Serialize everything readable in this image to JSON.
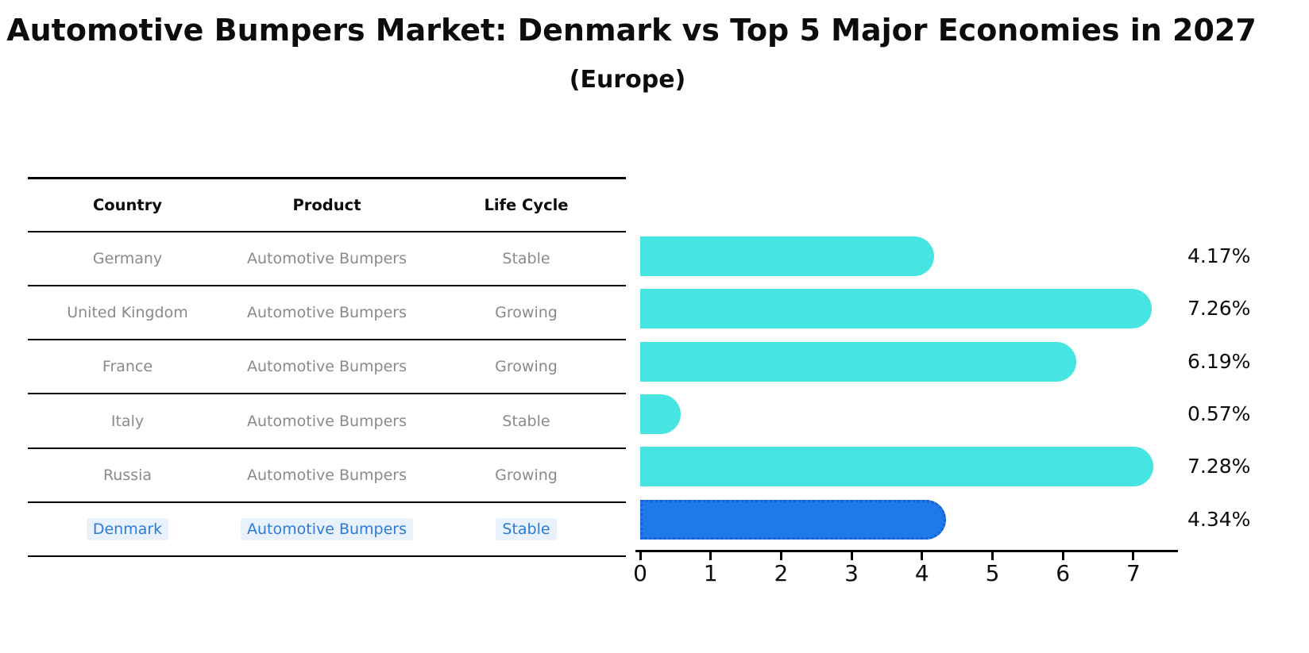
{
  "title": "Automotive Bumpers Market: Denmark vs Top 5 Major Economies in 2027",
  "subtitle": "(Europe)",
  "table": {
    "headers": [
      "Country",
      "Product",
      "Life Cycle"
    ],
    "rows": [
      {
        "country": "Germany",
        "product": "Automotive Bumpers",
        "life_cycle": "Stable",
        "highlighted": false
      },
      {
        "country": "United Kingdom",
        "product": "Automotive Bumpers",
        "life_cycle": "Growing",
        "highlighted": false
      },
      {
        "country": "France",
        "product": "Automotive Bumpers",
        "life_cycle": "Growing",
        "highlighted": false
      },
      {
        "country": "Italy",
        "product": "Automotive Bumpers",
        "life_cycle": "Stable",
        "highlighted": false
      },
      {
        "country": "Russia",
        "product": "Automotive Bumpers",
        "life_cycle": "Growing",
        "highlighted": false
      },
      {
        "country": "Denmark",
        "product": "Automotive Bumpers",
        "life_cycle": "Stable",
        "highlighted": true
      }
    ]
  },
  "chart_data": {
    "type": "bar",
    "orientation": "horizontal",
    "title": "Automotive Bumpers Market: Denmark vs Top 5 Major Economies in 2027",
    "subtitle": "(Europe)",
    "categories": [
      "Germany",
      "United Kingdom",
      "France",
      "Italy",
      "Russia",
      "Denmark"
    ],
    "values": [
      4.17,
      7.26,
      6.19,
      0.57,
      7.28,
      4.34
    ],
    "value_labels": [
      "4.17%",
      "7.26%",
      "6.19%",
      "0.57%",
      "7.28%",
      "4.34%"
    ],
    "x_ticks": [
      0,
      1,
      2,
      3,
      4,
      5,
      6,
      7
    ],
    "xlim": [
      0,
      7.63
    ],
    "grid": false,
    "legend": false,
    "bar_color": "#46e5e2",
    "highlight_index": 5,
    "highlight_bar_color": "#1e7ae8",
    "highlight_bar_edge_color": "#1a5ecf",
    "highlight_text_color": "#2b7bd4",
    "muted_text_color": "#8a8a8a"
  }
}
